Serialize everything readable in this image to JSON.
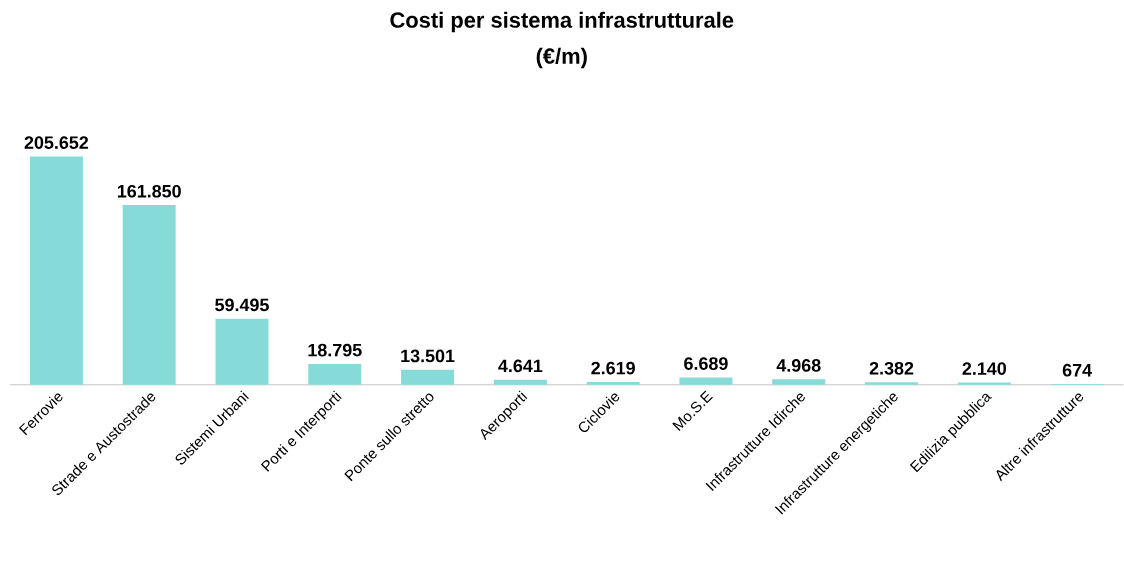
{
  "chart_data": {
    "type": "bar",
    "title": "Costi per sistema infrastrutturale",
    "subtitle": "(€/m)",
    "categories": [
      "Ferrovie",
      "Strade e Austostrade",
      "Sistemi Urbani",
      "Porti e Interporti",
      "Ponte sullo stretto",
      "Aeroporti",
      "Ciclovie",
      "Mo.S.E",
      "Infrastrutture Idirche",
      "Infrastrutture energetiche",
      "Edilizia pubblica",
      "Altre infrastrutture"
    ],
    "values": [
      205652,
      161850,
      59495,
      18795,
      13501,
      4641,
      2619,
      6689,
      4968,
      2382,
      2140,
      674
    ],
    "value_labels": [
      "205.652",
      "161.850",
      "59.495",
      "18.795",
      "13.501",
      "4.641",
      "2.619",
      "6.689",
      "4.968",
      "2.382",
      "2.140",
      "674"
    ],
    "color": "#86dbd8"
  }
}
